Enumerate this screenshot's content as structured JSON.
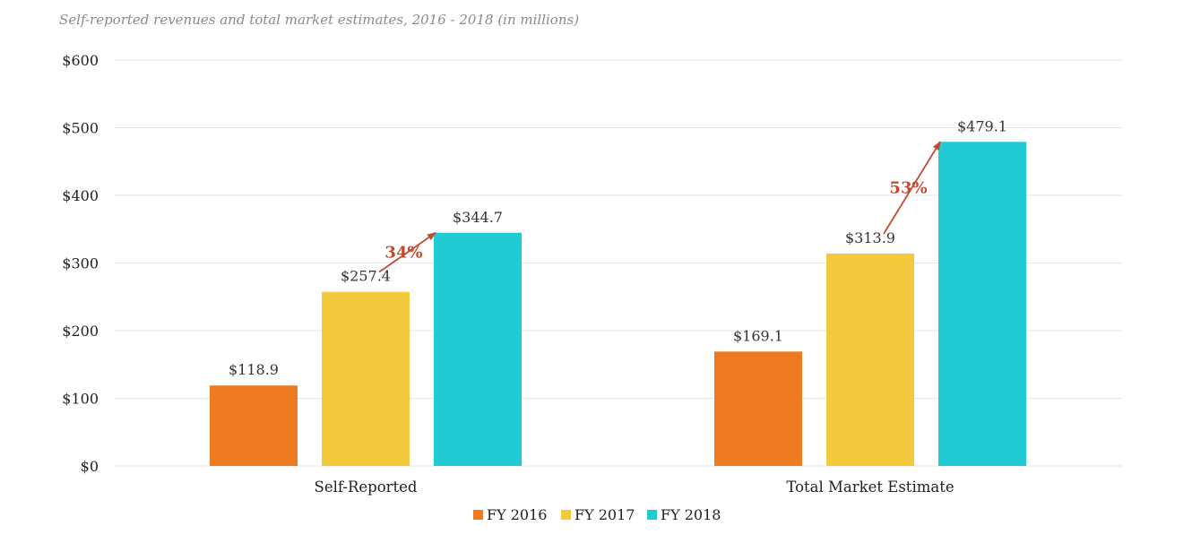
{
  "chart_data": {
    "type": "bar",
    "title": "Self-reported revenues and total market estimates, 2016 - 2018 (in millions)",
    "categories": [
      "Self-Reported",
      "Total Market Estimate"
    ],
    "series": [
      {
        "name": "FY 2016",
        "color": "#ee7a22",
        "values": [
          118.9,
          169.1
        ],
        "labels": [
          "$118.9",
          "$169.1"
        ]
      },
      {
        "name": "FY 2017",
        "color": "#f2ca3c",
        "values": [
          257.4,
          313.9
        ],
        "labels": [
          "$257.4",
          "$313.9"
        ]
      },
      {
        "name": "FY 2018",
        "color": "#22cbd4",
        "values": [
          344.7,
          479.1
        ],
        "labels": [
          "$344.7",
          "$479.1"
        ]
      }
    ],
    "ylim": [
      0,
      600
    ],
    "yticks": [
      0,
      100,
      200,
      300,
      400,
      500,
      600
    ],
    "ytick_labels": [
      "$0",
      "$100",
      "$200",
      "$300",
      "$400",
      "$500",
      "$600"
    ],
    "xlabel": "",
    "ylabel": "",
    "grid": true,
    "legend_position": "bottom-center",
    "annotations": [
      {
        "category": "Self-Reported",
        "from_series": "FY 2017",
        "to_series": "FY 2018",
        "text": "34%",
        "color": "#c14a2c"
      },
      {
        "category": "Total Market Estimate",
        "from_series": "FY 2017",
        "to_series": "FY 2018",
        "text": "53%",
        "color": "#c14a2c"
      }
    ]
  }
}
